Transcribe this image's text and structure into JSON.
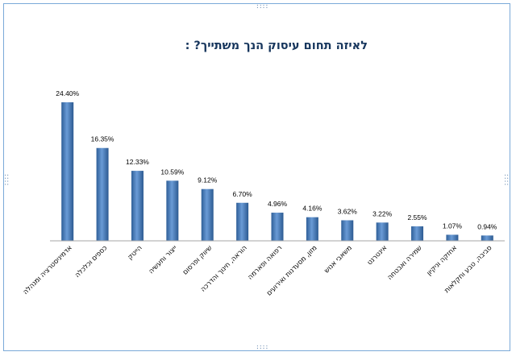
{
  "chart_data": {
    "type": "bar",
    "title": "לאיזה תחום עיסוק הנך משתייך? :",
    "categories": [
      "אדמיניסטרציה ומנהלה",
      "כספים וכלכלה",
      "הייטק",
      "ייצור ותעשיה",
      "שיווק ופרסום",
      "הוראה, חינוך והדרכה",
      "רפואה ופארמה",
      "מזון, מסעדנות ואירועים",
      "משאבי אנוש",
      "אינטרנט",
      "שמירה ואבטחה",
      "אחזקה וניקיון",
      "סביבה, טבע וחקלאות"
    ],
    "values": [
      24.4,
      16.35,
      12.33,
      10.59,
      9.12,
      6.7,
      4.96,
      4.16,
      3.62,
      3.22,
      2.55,
      1.07,
      0.94
    ],
    "value_labels": [
      "24.40%",
      "16.35%",
      "12.33%",
      "10.59%",
      "9.12%",
      "6.70%",
      "4.96%",
      "4.16%",
      "3.62%",
      "3.22%",
      "2.55%",
      "1.07%",
      "0.94%"
    ],
    "ylim": [
      0,
      30
    ],
    "grid": false,
    "legend": "none",
    "bar_color": "#4f81bd"
  },
  "handles": {
    "horizontal": "::::",
    "vertical": "::::"
  }
}
